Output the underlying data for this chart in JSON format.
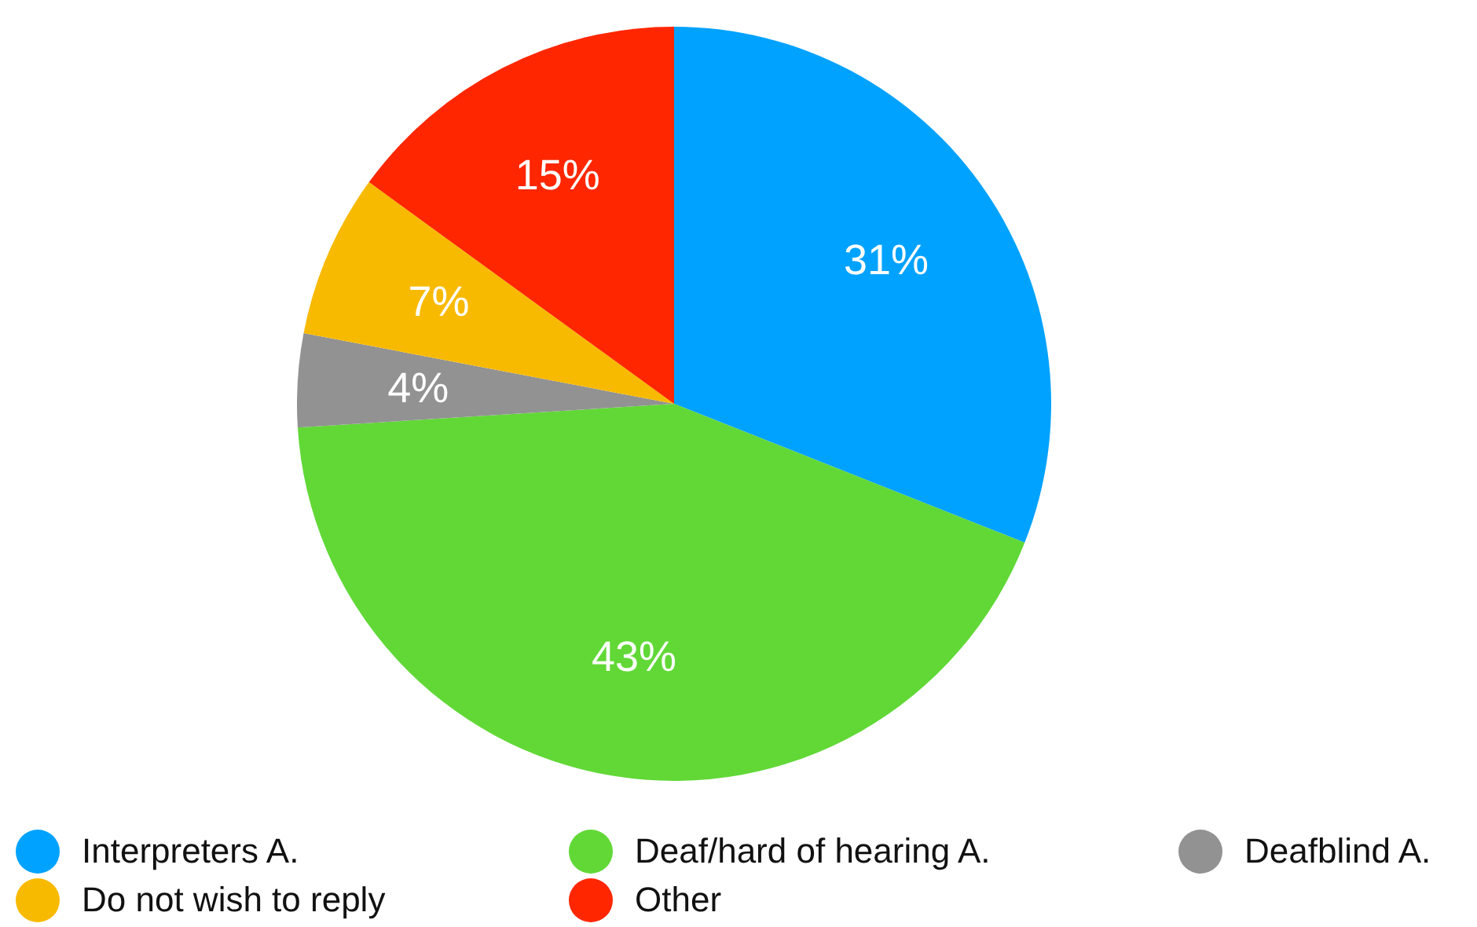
{
  "chart_data": {
    "type": "pie",
    "categories": [
      "Interpreters A.",
      "Deaf/hard of hearing A.",
      "Deafblind A.",
      "Do not wish to reply",
      "Other"
    ],
    "values": [
      31,
      43,
      4,
      7,
      15
    ],
    "colors": [
      "#00a2ff",
      "#61d836",
      "#929292",
      "#f8ba00",
      "#ff2600"
    ],
    "value_labels": [
      "31%",
      "43%",
      "4%",
      "7%",
      "15%"
    ],
    "legend": "bottom"
  }
}
